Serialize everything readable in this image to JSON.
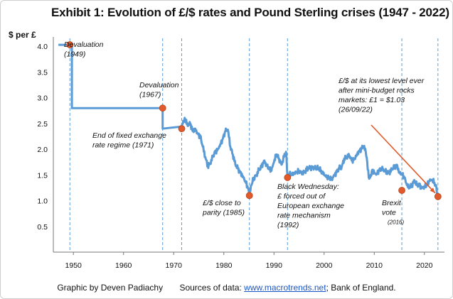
{
  "chart_data": {
    "type": "line",
    "title": "Exhibit 1: Evolution of £/$ rates and Pound Sterling crises (1947 - 2022)",
    "ylabel": "$ per £",
    "xlabel": "",
    "xlim": [
      1946,
      2024
    ],
    "ylim": [
      0,
      4.1
    ],
    "x_ticks": [
      1950,
      1960,
      1970,
      1980,
      1990,
      2000,
      2010,
      2020
    ],
    "y_ticks": [
      0.5,
      1.0,
      1.5,
      2.0,
      2.5,
      3.0,
      3.5,
      4.0
    ],
    "y_tick_labels": [
      "0.5",
      "1.0",
      "1.5",
      "2.0",
      "2.5",
      "3.0",
      "3.5",
      "4.0"
    ],
    "grid": false,
    "line_color": "#5b9bd5",
    "marker_color": "#e05a2b",
    "series": [
      {
        "x": [
          1947.0,
          1949.7,
          1949.7,
          1967.8,
          1967.8,
          1971.6,
          1972.0,
          1972.3,
          1972.8,
          1973.3,
          1973.8,
          1974.3,
          1974.8,
          1975.3,
          1975.8,
          1976.3,
          1976.8,
          1977.3,
          1977.8,
          1978.3,
          1978.8,
          1979.3,
          1979.8,
          1980.3,
          1980.8,
          1981.3,
          1981.8,
          1982.3,
          1982.8,
          1983.3,
          1983.8,
          1984.3,
          1984.8,
          1985.1,
          1985.5,
          1986.0,
          1986.5,
          1987.0,
          1987.5,
          1988.0,
          1988.5,
          1989.0,
          1989.5,
          1990.0,
          1990.5,
          1991.0,
          1991.5,
          1992.0,
          1992.4,
          1992.7,
          1993.0,
          1993.5,
          1994.0,
          1994.5,
          1995.0,
          1995.5,
          1996.0,
          1996.5,
          1997.0,
          1998.0,
          1999.0,
          2000.0,
          2000.5,
          2001.0,
          2001.5,
          2002.0,
          2002.5,
          2003.0,
          2003.5,
          2004.0,
          2004.5,
          2005.0,
          2005.5,
          2006.0,
          2006.5,
          2007.0,
          2007.5,
          2007.9,
          2008.3,
          2008.6,
          2008.9,
          2009.2,
          2009.6,
          2010.0,
          2010.5,
          2011.0,
          2011.5,
          2012.0,
          2012.5,
          2013.0,
          2013.5,
          2014.0,
          2014.5,
          2015.0,
          2015.5,
          2016.0,
          2016.5,
          2017.0,
          2017.5,
          2018.0,
          2018.5,
          2019.0,
          2019.5,
          2020.0,
          2020.5,
          2021.0,
          2021.5,
          2022.0,
          2022.4,
          2022.7
        ],
        "y": [
          4.03,
          4.03,
          2.8,
          2.8,
          2.4,
          2.44,
          2.55,
          2.58,
          2.45,
          2.5,
          2.35,
          2.4,
          2.3,
          2.25,
          2.05,
          1.85,
          1.67,
          1.72,
          1.85,
          1.95,
          2.0,
          2.1,
          2.2,
          2.35,
          2.38,
          2.05,
          1.9,
          1.7,
          1.62,
          1.55,
          1.48,
          1.38,
          1.25,
          1.1,
          1.3,
          1.45,
          1.5,
          1.6,
          1.65,
          1.78,
          1.7,
          1.62,
          1.58,
          1.75,
          1.9,
          1.82,
          1.7,
          1.85,
          1.95,
          1.48,
          1.52,
          1.5,
          1.52,
          1.55,
          1.58,
          1.55,
          1.55,
          1.6,
          1.64,
          1.65,
          1.62,
          1.5,
          1.45,
          1.45,
          1.42,
          1.5,
          1.55,
          1.63,
          1.65,
          1.82,
          1.84,
          1.88,
          1.78,
          1.8,
          1.9,
          1.97,
          2.01,
          2.05,
          1.95,
          1.75,
          1.45,
          1.45,
          1.6,
          1.55,
          1.52,
          1.6,
          1.62,
          1.58,
          1.56,
          1.55,
          1.6,
          1.65,
          1.7,
          1.55,
          1.52,
          1.45,
          1.3,
          1.25,
          1.3,
          1.4,
          1.3,
          1.3,
          1.25,
          1.28,
          1.3,
          1.38,
          1.4,
          1.35,
          1.25,
          1.08
        ]
      }
    ],
    "events": [
      {
        "x": 1949.3,
        "y": 4.03,
        "lines": [
          "Devaluation",
          "(1949)"
        ]
      },
      {
        "x": 1967.8,
        "y": 2.8,
        "lines": [
          "Devaluation",
          "(1967)"
        ]
      },
      {
        "x": 1971.6,
        "y": 2.4,
        "lines": [
          "End of fixed exchange",
          "rate regime (1971)"
        ]
      },
      {
        "x": 1985.1,
        "y": 1.1,
        "lines": [
          "£/$ close to",
          "parity (1985)"
        ]
      },
      {
        "x": 1992.7,
        "y": 1.45,
        "lines": [
          "Black Wednesday:",
          "£ forced out of",
          "European exchange",
          "rate mechanism",
          "(1992)"
        ]
      },
      {
        "x": 2015.5,
        "y": 1.2,
        "lines": [
          "Brexit",
          "vote"
        ],
        "extra": "(2016)"
      },
      {
        "x": 2022.7,
        "y": 1.08,
        "lines": [
          "£/$ at its lowest level ever",
          "after mini-budget rocks",
          "markets: £1 = $1.03",
          "(26/09/22)"
        ]
      }
    ]
  },
  "footer": {
    "credit": "Graphic by Deven Padiachy",
    "sources_prefix": "Sources of data:",
    "sources_link": "www.macrotrends.net",
    "sources_suffix": "; Bank of England."
  }
}
